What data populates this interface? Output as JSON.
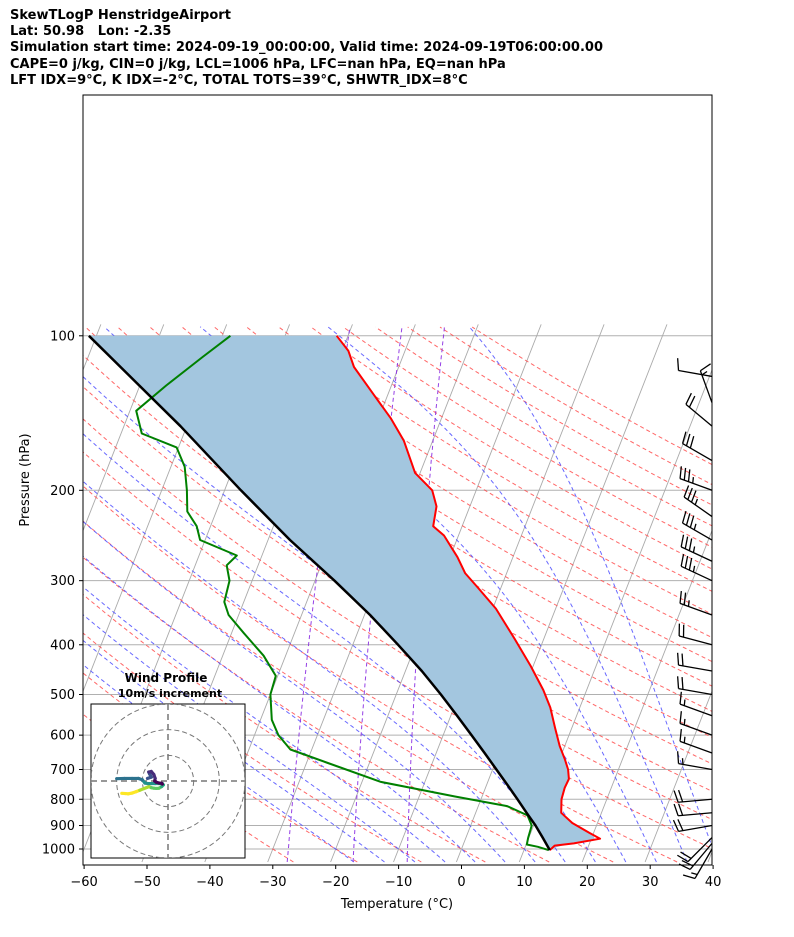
{
  "header": {
    "line1": "SkewTLogP HenstridgeAirport",
    "line2": "Lat: 50.98   Lon: -2.35",
    "line3": "Simulation start time: 2024-09-19_00:00:00, Valid time: 2024-09-19T06:00:00.00",
    "line4": "CAPE=0 j/kg, CIN=0 j/kg, LCL=1006 hPa, LFC=nan hPa, EQ=nan hPa",
    "line5": "LFT IDX=9$^\\circ$C, K IDX=-2$^\\circ$C, TOTAL TOTS=39$^\\circ$C, SHWTR_IDX=8$^\\circ$C"
  },
  "header_display": {
    "line5": "LFT IDX=9°C, K IDX=-2°C, TOTAL TOTS=39°C, SHWTR_IDX=8°C"
  },
  "chart_data": {
    "type": "skewt",
    "xlabel": "Temperature (°C)",
    "ylabel": "Pressure (hPa)",
    "xlim": [
      -60,
      40
    ],
    "ylim": [
      1040,
      100
    ],
    "x_ticks": [
      -60,
      -50,
      -40,
      -30,
      -20,
      -10,
      0,
      10,
      20,
      30,
      40
    ],
    "x_tick_labels": [
      "−60",
      "−50",
      "−40",
      "−30",
      "−20",
      "−10",
      "0",
      "10",
      "20",
      "30",
      "40"
    ],
    "y_ticks": [
      1000,
      900,
      800,
      700,
      600,
      500,
      400,
      300,
      200,
      100
    ],
    "y_tick_labels": [
      "1000",
      "900",
      "800",
      "700",
      "600",
      "500",
      "400",
      "300",
      "200",
      "100"
    ],
    "log_pressure": true,
    "grid": true,
    "colors": {
      "temperature": "#ff0000",
      "dewpoint": "#008000",
      "parcel": "#000000",
      "cape_fill": "#a3c6df",
      "dry_adiabat": "#ff4d4d",
      "moist_adiabat": "#4d4dff",
      "mixing_ratio": "#8a2be2",
      "isotherm": "#aaaaaa"
    },
    "series": [
      {
        "name": "temperature",
        "points": [
          [
            1005,
            14.1
          ],
          [
            985,
            14.6
          ],
          [
            975,
            17.5
          ],
          [
            955,
            21.4
          ],
          [
            930,
            19.3
          ],
          [
            890,
            16.0
          ],
          [
            850,
            13.6
          ],
          [
            800,
            12.8
          ],
          [
            760,
            12.6
          ],
          [
            730,
            12.7
          ],
          [
            700,
            12.0
          ],
          [
            670,
            10.9
          ],
          [
            630,
            9.2
          ],
          [
            580,
            7.3
          ],
          [
            530,
            5.3
          ],
          [
            490,
            3.1
          ],
          [
            440,
            -0.4
          ],
          [
            390,
            -4.6
          ],
          [
            340,
            -9.5
          ],
          [
            310,
            -13.6
          ],
          [
            290,
            -16.6
          ],
          [
            270,
            -18.8
          ],
          [
            245,
            -22.3
          ],
          [
            235,
            -24.6
          ],
          [
            215,
            -25.3
          ],
          [
            200,
            -27.0
          ],
          [
            185,
            -30.8
          ],
          [
            160,
            -34.6
          ],
          [
            145,
            -38.0
          ],
          [
            130,
            -42.3
          ],
          [
            115,
            -47.1
          ],
          [
            107,
            -49.0
          ],
          [
            100,
            -51.8
          ]
        ]
      },
      {
        "name": "dewpoint",
        "points": [
          [
            1005,
            13.9
          ],
          [
            990,
            12.0
          ],
          [
            980,
            10.1
          ],
          [
            950,
            9.9
          ],
          [
            900,
            9.7
          ],
          [
            860,
            8.4
          ],
          [
            825,
            4.6
          ],
          [
            790,
            -4.3
          ],
          [
            740,
            -17.0
          ],
          [
            680,
            -26.6
          ],
          [
            640,
            -33.4
          ],
          [
            600,
            -36.2
          ],
          [
            560,
            -38.2
          ],
          [
            500,
            -40.0
          ],
          [
            460,
            -40.3
          ],
          [
            420,
            -43.5
          ],
          [
            380,
            -48.0
          ],
          [
            350,
            -51.6
          ],
          [
            330,
            -53.1
          ],
          [
            300,
            -53.6
          ],
          [
            280,
            -55.0
          ],
          [
            268,
            -54.0
          ],
          [
            250,
            -60.8
          ],
          [
            235,
            -62.2
          ],
          [
            220,
            -64.6
          ],
          [
            200,
            -66.0
          ],
          [
            180,
            -67.8
          ],
          [
            165,
            -70.3
          ],
          [
            155,
            -76.7
          ],
          [
            140,
            -79.0
          ],
          [
            125,
            -75.8
          ],
          [
            110,
            -71.8
          ],
          [
            100,
            -68.7
          ]
        ]
      },
      {
        "name": "parcel",
        "points": [
          [
            1005,
            14.1
          ],
          [
            950,
            12.2
          ],
          [
            900,
            10.3
          ],
          [
            850,
            8.1
          ],
          [
            800,
            5.8
          ],
          [
            750,
            3.3
          ],
          [
            700,
            0.6
          ],
          [
            650,
            -2.3
          ],
          [
            600,
            -5.5
          ],
          [
            550,
            -9.0
          ],
          [
            500,
            -12.9
          ],
          [
            450,
            -17.4
          ],
          [
            400,
            -22.8
          ],
          [
            350,
            -29.1
          ],
          [
            300,
            -36.9
          ],
          [
            250,
            -46.5
          ],
          [
            200,
            -57.4
          ],
          [
            150,
            -71.0
          ],
          [
            100,
            -91.2
          ]
        ]
      }
    ],
    "wind_barbs": [
      {
        "p": 1000,
        "speed_kt": 15,
        "dir_deg": 210
      },
      {
        "p": 975,
        "speed_kt": 20,
        "dir_deg": 220
      },
      {
        "p": 950,
        "speed_kt": 20,
        "dir_deg": 225
      },
      {
        "p": 900,
        "speed_kt": 20,
        "dir_deg": 260
      },
      {
        "p": 850,
        "speed_kt": 20,
        "dir_deg": 265
      },
      {
        "p": 800,
        "speed_kt": 20,
        "dir_deg": 265
      },
      {
        "p": 700,
        "speed_kt": 15,
        "dir_deg": 280
      },
      {
        "p": 650,
        "speed_kt": 15,
        "dir_deg": 290
      },
      {
        "p": 600,
        "speed_kt": 15,
        "dir_deg": 290
      },
      {
        "p": 550,
        "speed_kt": 15,
        "dir_deg": 290
      },
      {
        "p": 500,
        "speed_kt": 20,
        "dir_deg": 280
      },
      {
        "p": 450,
        "speed_kt": 20,
        "dir_deg": 280
      },
      {
        "p": 400,
        "speed_kt": 20,
        "dir_deg": 285
      },
      {
        "p": 350,
        "speed_kt": 25,
        "dir_deg": 290
      },
      {
        "p": 300,
        "speed_kt": 35,
        "dir_deg": 295
      },
      {
        "p": 275,
        "speed_kt": 35,
        "dir_deg": 295
      },
      {
        "p": 250,
        "speed_kt": 35,
        "dir_deg": 300
      },
      {
        "p": 225,
        "speed_kt": 35,
        "dir_deg": 305
      },
      {
        "p": 200,
        "speed_kt": 35,
        "dir_deg": 290
      },
      {
        "p": 175,
        "speed_kt": 30,
        "dir_deg": 300
      },
      {
        "p": 150,
        "speed_kt": 20,
        "dir_deg": 310
      },
      {
        "p": 135,
        "speed_kt": 15,
        "dir_deg": 340
      },
      {
        "p": 120,
        "speed_kt": 10,
        "dir_deg": 280
      }
    ],
    "hodograph": {
      "title": "Wind Profile",
      "subtitle": "10m/s increment",
      "rings_ms": [
        10,
        20,
        30
      ],
      "range_ms": 30,
      "points": [
        [
          -18.0,
          -4.8
        ],
        [
          -16.5,
          -4.9
        ],
        [
          -15.5,
          -5.0
        ],
        [
          -14.0,
          -4.7
        ],
        [
          -12.5,
          -4.2
        ],
        [
          -11.0,
          -3.6
        ],
        [
          -9.5,
          -3.0
        ],
        [
          -8.2,
          -2.5
        ],
        [
          -7.4,
          -2.2
        ],
        [
          -6.5,
          -2.6
        ],
        [
          -5.5,
          -2.8
        ],
        [
          -4.5,
          -2.9
        ],
        [
          -3.5,
          -2.8
        ],
        [
          -2.5,
          -2.2
        ],
        [
          -1.8,
          -1.5
        ],
        [
          -2.2,
          -1.0
        ],
        [
          -3.4,
          -1.0
        ],
        [
          -5.0,
          -1.0
        ],
        [
          -6.5,
          -1.0
        ],
        [
          -7.8,
          -1.0
        ],
        [
          -9.0,
          -0.8
        ],
        [
          -10.0,
          0.5
        ],
        [
          -11.5,
          1.0
        ],
        [
          -14.0,
          1.0
        ],
        [
          -17.0,
          1.0
        ],
        [
          -20.0,
          0.9
        ],
        [
          -8.0,
          1.0
        ],
        [
          -6.5,
          1.5
        ],
        [
          -7.2,
          2.8
        ],
        [
          -7.5,
          3.5
        ],
        [
          -6.5,
          3.7
        ],
        [
          -5.5,
          2.5
        ],
        [
          -5.0,
          1.0
        ],
        [
          -5.2,
          0.0
        ],
        [
          -4.5,
          -0.5
        ],
        [
          -3.5,
          -0.8
        ],
        [
          -2.5,
          -0.9
        ],
        [
          -2.2,
          -1.2
        ]
      ]
    }
  }
}
